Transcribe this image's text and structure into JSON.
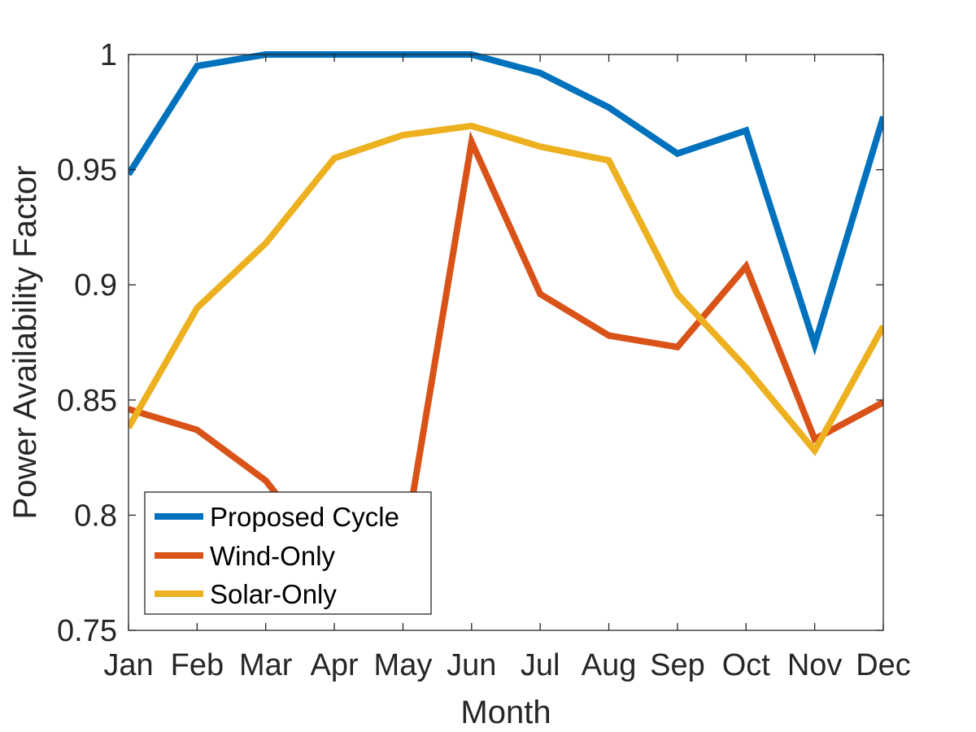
{
  "chart_data": {
    "type": "line",
    "title": "",
    "xlabel": "Month",
    "ylabel": "Power Availability Factor",
    "categories": [
      "Jan",
      "Feb",
      "Mar",
      "Apr",
      "May",
      "Jun",
      "Jul",
      "Aug",
      "Sep",
      "Oct",
      "Nov",
      "Dec"
    ],
    "ylim": [
      0.75,
      1
    ],
    "yticks": [
      0.75,
      0.8,
      0.85,
      0.9,
      0.95,
      1
    ],
    "ytick_labels": [
      "0.75",
      "0.8",
      "0.85",
      "0.9",
      "0.95",
      "1"
    ],
    "grid": false,
    "legend_position": "bottom-left",
    "series": [
      {
        "name": "Proposed Cycle",
        "color": "#0072BD",
        "values": [
          0.948,
          0.995,
          1.0,
          1.0,
          1.0,
          1.0,
          0.992,
          0.977,
          0.957,
          0.967,
          0.874,
          0.973
        ]
      },
      {
        "name": "Wind-Only",
        "color": "#D95319",
        "values": [
          0.846,
          0.837,
          0.815,
          0.777,
          0.783,
          0.962,
          0.896,
          0.878,
          0.873,
          0.908,
          0.833,
          0.849
        ]
      },
      {
        "name": "Solar-Only",
        "color": "#EDB120",
        "values": [
          0.838,
          0.89,
          0.918,
          0.955,
          0.965,
          0.969,
          0.96,
          0.954,
          0.896,
          0.864,
          0.828,
          0.882
        ]
      }
    ]
  }
}
